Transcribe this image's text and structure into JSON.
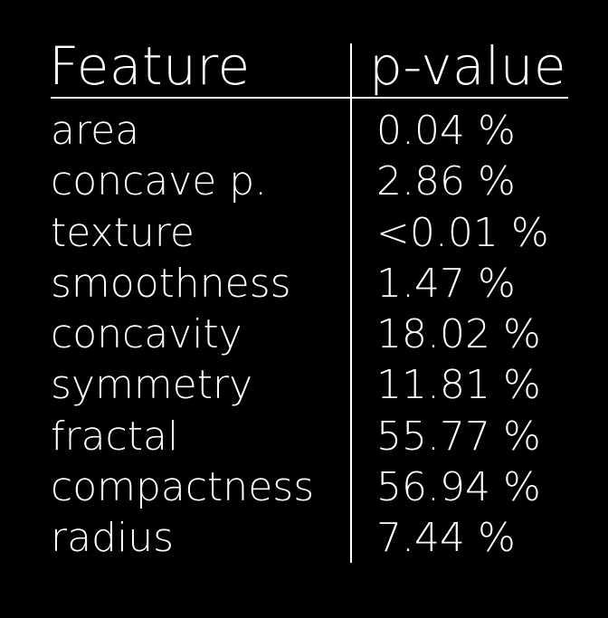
{
  "table": {
    "headers": {
      "feature": "Feature",
      "pvalue": "p-value"
    },
    "rows": [
      {
        "feature": "area",
        "pvalue": "0.04 %"
      },
      {
        "feature": "concave p.",
        "pvalue": "2.86 %"
      },
      {
        "feature": "texture",
        "pvalue": "<0.01 %"
      },
      {
        "feature": "smoothness",
        "pvalue": "1.47 %"
      },
      {
        "feature": "concavity",
        "pvalue": "18.02 %"
      },
      {
        "feature": "symmetry",
        "pvalue": "11.81 %"
      },
      {
        "feature": "fractal",
        "pvalue": "55.77 %"
      },
      {
        "feature": "compactness",
        "pvalue": "56.94 %"
      },
      {
        "feature": "radius",
        "pvalue": "7.44 %"
      }
    ]
  },
  "colors": {
    "background": "#000000",
    "text": "#ffffff"
  }
}
